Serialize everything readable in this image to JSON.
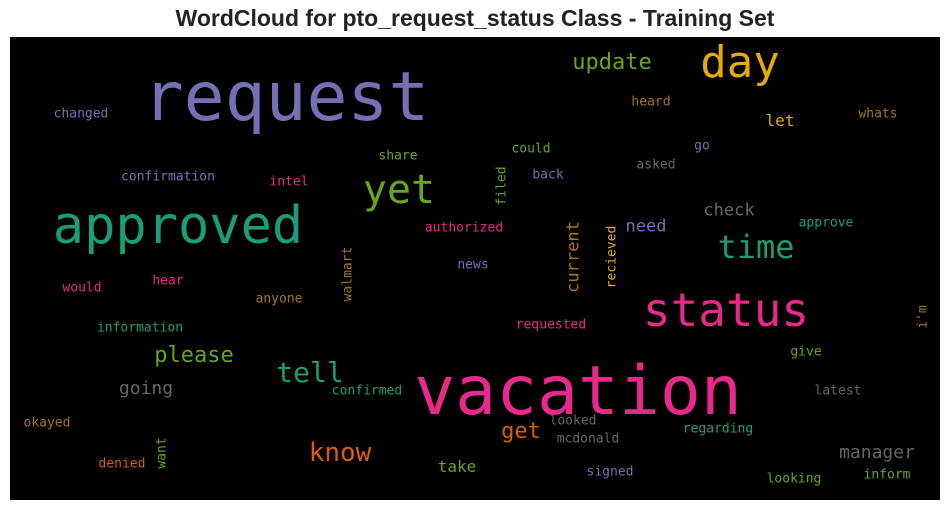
{
  "chart_data": {
    "type": "wordcloud",
    "title": "WordCloud for pto_request_status Class - Training Set",
    "background": "#000000",
    "words": [
      {
        "text": "request",
        "color": "#7570b3"
      },
      {
        "text": "vacation",
        "color": "#e7298a"
      },
      {
        "text": "approved",
        "color": "#1b9e77"
      },
      {
        "text": "status",
        "color": "#e7298a"
      },
      {
        "text": "day",
        "color": "#e6ab02"
      },
      {
        "text": "yet",
        "color": "#66a61e"
      },
      {
        "text": "time",
        "color": "#1b9e77"
      },
      {
        "text": "tell",
        "color": "#1b9e77"
      },
      {
        "text": "know",
        "color": "#d95f02"
      },
      {
        "text": "update",
        "color": "#66a61e"
      },
      {
        "text": "please",
        "color": "#66a61e"
      },
      {
        "text": "get",
        "color": "#d95f02"
      },
      {
        "text": "going",
        "color": "#666666"
      },
      {
        "text": "manager",
        "color": "#666666"
      },
      {
        "text": "check",
        "color": "#666666"
      },
      {
        "text": "current",
        "color": "#a6761d"
      },
      {
        "text": "need",
        "color": "#7570b3"
      },
      {
        "text": "take",
        "color": "#66a61e"
      },
      {
        "text": "let",
        "color": "#e6ab02"
      },
      {
        "text": "heard",
        "color": "#a6761d"
      },
      {
        "text": "whats",
        "color": "#a6761d"
      },
      {
        "text": "changed",
        "color": "#7570b3"
      },
      {
        "text": "share",
        "color": "#66a61e"
      },
      {
        "text": "could",
        "color": "#66a61e"
      },
      {
        "text": "go",
        "color": "#7570b3"
      },
      {
        "text": "asked",
        "color": "#666666"
      },
      {
        "text": "confirmation",
        "color": "#7570b3"
      },
      {
        "text": "intel",
        "color": "#e7298a"
      },
      {
        "text": "filed",
        "color": "#66a61e"
      },
      {
        "text": "back",
        "color": "#7570b3"
      },
      {
        "text": "approve",
        "color": "#1b9e77"
      },
      {
        "text": "authorized",
        "color": "#e7298a"
      },
      {
        "text": "recieved",
        "color": "#e6ab02"
      },
      {
        "text": "walmart",
        "color": "#a6761d"
      },
      {
        "text": "news",
        "color": "#7570b3"
      },
      {
        "text": "would",
        "color": "#e7298a"
      },
      {
        "text": "hear",
        "color": "#e7298a"
      },
      {
        "text": "anyone",
        "color": "#a6761d"
      },
      {
        "text": "information",
        "color": "#1b9e77"
      },
      {
        "text": "requested",
        "color": "#e7298a"
      },
      {
        "text": "i'm",
        "color": "#a6761d"
      },
      {
        "text": "give",
        "color": "#66a61e"
      },
      {
        "text": "confirmed",
        "color": "#1b9e77"
      },
      {
        "text": "latest",
        "color": "#666666"
      },
      {
        "text": "okayed",
        "color": "#a6761d"
      },
      {
        "text": "want",
        "color": "#66a61e"
      },
      {
        "text": "looked",
        "color": "#666666"
      },
      {
        "text": "mcdonald",
        "color": "#666666"
      },
      {
        "text": "regarding",
        "color": "#1b9e77"
      },
      {
        "text": "denied",
        "color": "#d95f02"
      },
      {
        "text": "signed",
        "color": "#7570b3"
      },
      {
        "text": "looking",
        "color": "#66a61e"
      },
      {
        "text": "inform",
        "color": "#66a61e"
      }
    ]
  }
}
